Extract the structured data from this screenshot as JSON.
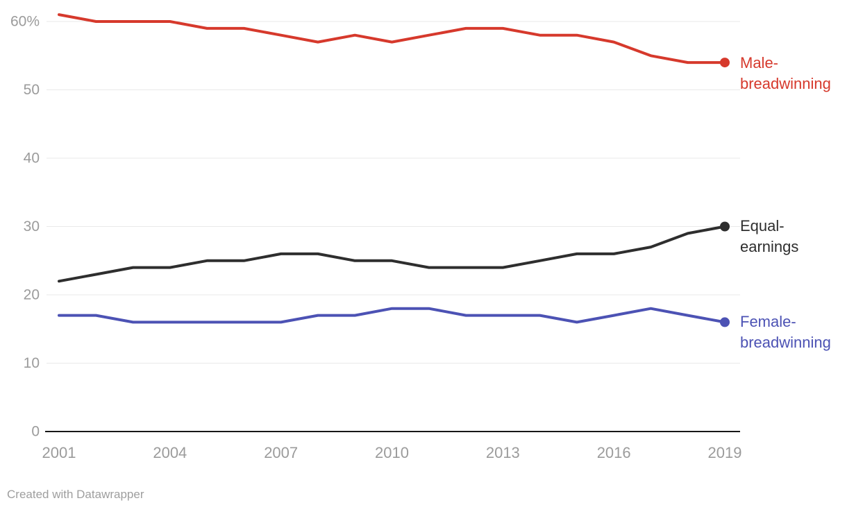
{
  "chart_data": {
    "type": "line",
    "x": [
      2001,
      2002,
      2003,
      2004,
      2005,
      2006,
      2007,
      2008,
      2009,
      2010,
      2011,
      2012,
      2013,
      2014,
      2015,
      2016,
      2017,
      2018,
      2019
    ],
    "series": [
      {
        "name": "Male-breadwinning",
        "label_lines": [
          "Male-",
          "breadwinning"
        ],
        "color": "#d6392c",
        "values": [
          61,
          60,
          60,
          60,
          59,
          59,
          58,
          57,
          58,
          57,
          58,
          59,
          59,
          58,
          58,
          57,
          55,
          54,
          54
        ]
      },
      {
        "name": "Equal-earnings",
        "label_lines": [
          "Equal-",
          "earnings"
        ],
        "color": "#2e2e2e",
        "values": [
          22,
          23,
          24,
          24,
          25,
          25,
          26,
          26,
          25,
          25,
          24,
          24,
          24,
          25,
          26,
          26,
          27,
          29,
          30
        ]
      },
      {
        "name": "Female-breadwinning",
        "label_lines": [
          "Female-",
          "breadwinning"
        ],
        "color": "#4c52b4",
        "values": [
          17,
          17,
          16,
          16,
          16,
          16,
          16,
          17,
          17,
          18,
          18,
          17,
          17,
          17,
          16,
          17,
          18,
          17,
          16
        ]
      }
    ],
    "y_ticks": [
      {
        "value": 60,
        "label": "60%"
      },
      {
        "value": 50,
        "label": "50"
      },
      {
        "value": 40,
        "label": "40"
      },
      {
        "value": 30,
        "label": "30"
      },
      {
        "value": 20,
        "label": "20"
      },
      {
        "value": 10,
        "label": "10"
      },
      {
        "value": 0,
        "label": "0"
      }
    ],
    "x_ticks": [
      {
        "value": 2001,
        "label": "2001"
      },
      {
        "value": 2004,
        "label": "2004"
      },
      {
        "value": 2007,
        "label": "2007"
      },
      {
        "value": 2010,
        "label": "2010"
      },
      {
        "value": 2013,
        "label": "2013"
      },
      {
        "value": 2016,
        "label": "2016"
      },
      {
        "value": 2019,
        "label": "2019"
      }
    ],
    "ylim": [
      0,
      63
    ],
    "xlim": [
      2001,
      2019
    ],
    "grid": true,
    "title": "",
    "xlabel": "",
    "ylabel": "",
    "legend_position": "right-of-line-ends",
    "unit": "%"
  },
  "colors": {
    "gridline": "#e9e9e9",
    "axis": "#161616",
    "tick_label": "#9b9b9b",
    "background": "#ffffff"
  },
  "attribution": "Created with Datawrapper"
}
